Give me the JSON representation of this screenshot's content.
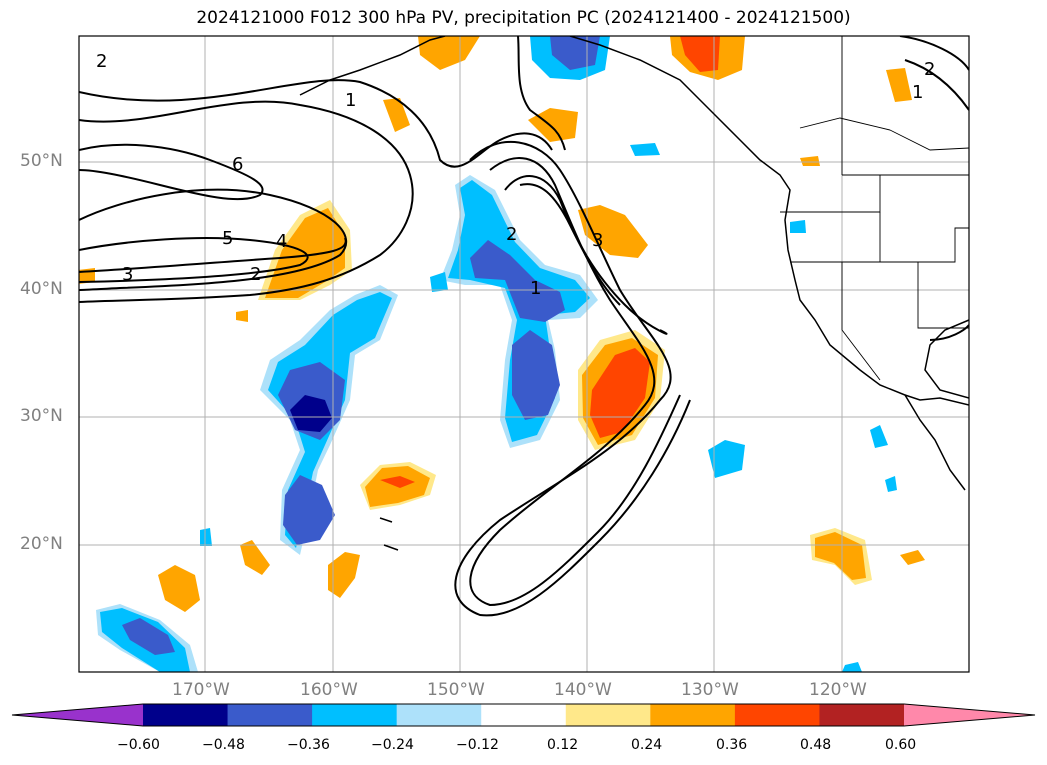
{
  "title": "2024121000 F012 300 hPa PV, precipitation PC (2024121400 - 2024121500)",
  "lat_labels": [
    "50°N",
    "40°N",
    "30°N",
    "20°N"
  ],
  "lon_labels": [
    "170°W",
    "160°W",
    "150°W",
    "140°W",
    "130°W",
    "120°W"
  ],
  "contour_labels": [
    "2",
    "1",
    "6",
    "5",
    "4",
    "3",
    "2",
    "2",
    "1",
    "3",
    "2",
    "1"
  ],
  "colorbar": {
    "tick_labels": [
      "−0.60",
      "−0.48",
      "−0.36",
      "−0.24",
      "−0.12",
      "0.12",
      "0.24",
      "0.36",
      "0.48",
      "0.60"
    ],
    "colors": [
      "#9932CC",
      "#00008B",
      "#3A5BCB",
      "#00BFFF",
      "#ADE1FA",
      "#FFFFFF",
      "#FFE88A",
      "#FFA500",
      "#FF4500",
      "#B22222",
      "#FF88AA"
    ]
  }
}
